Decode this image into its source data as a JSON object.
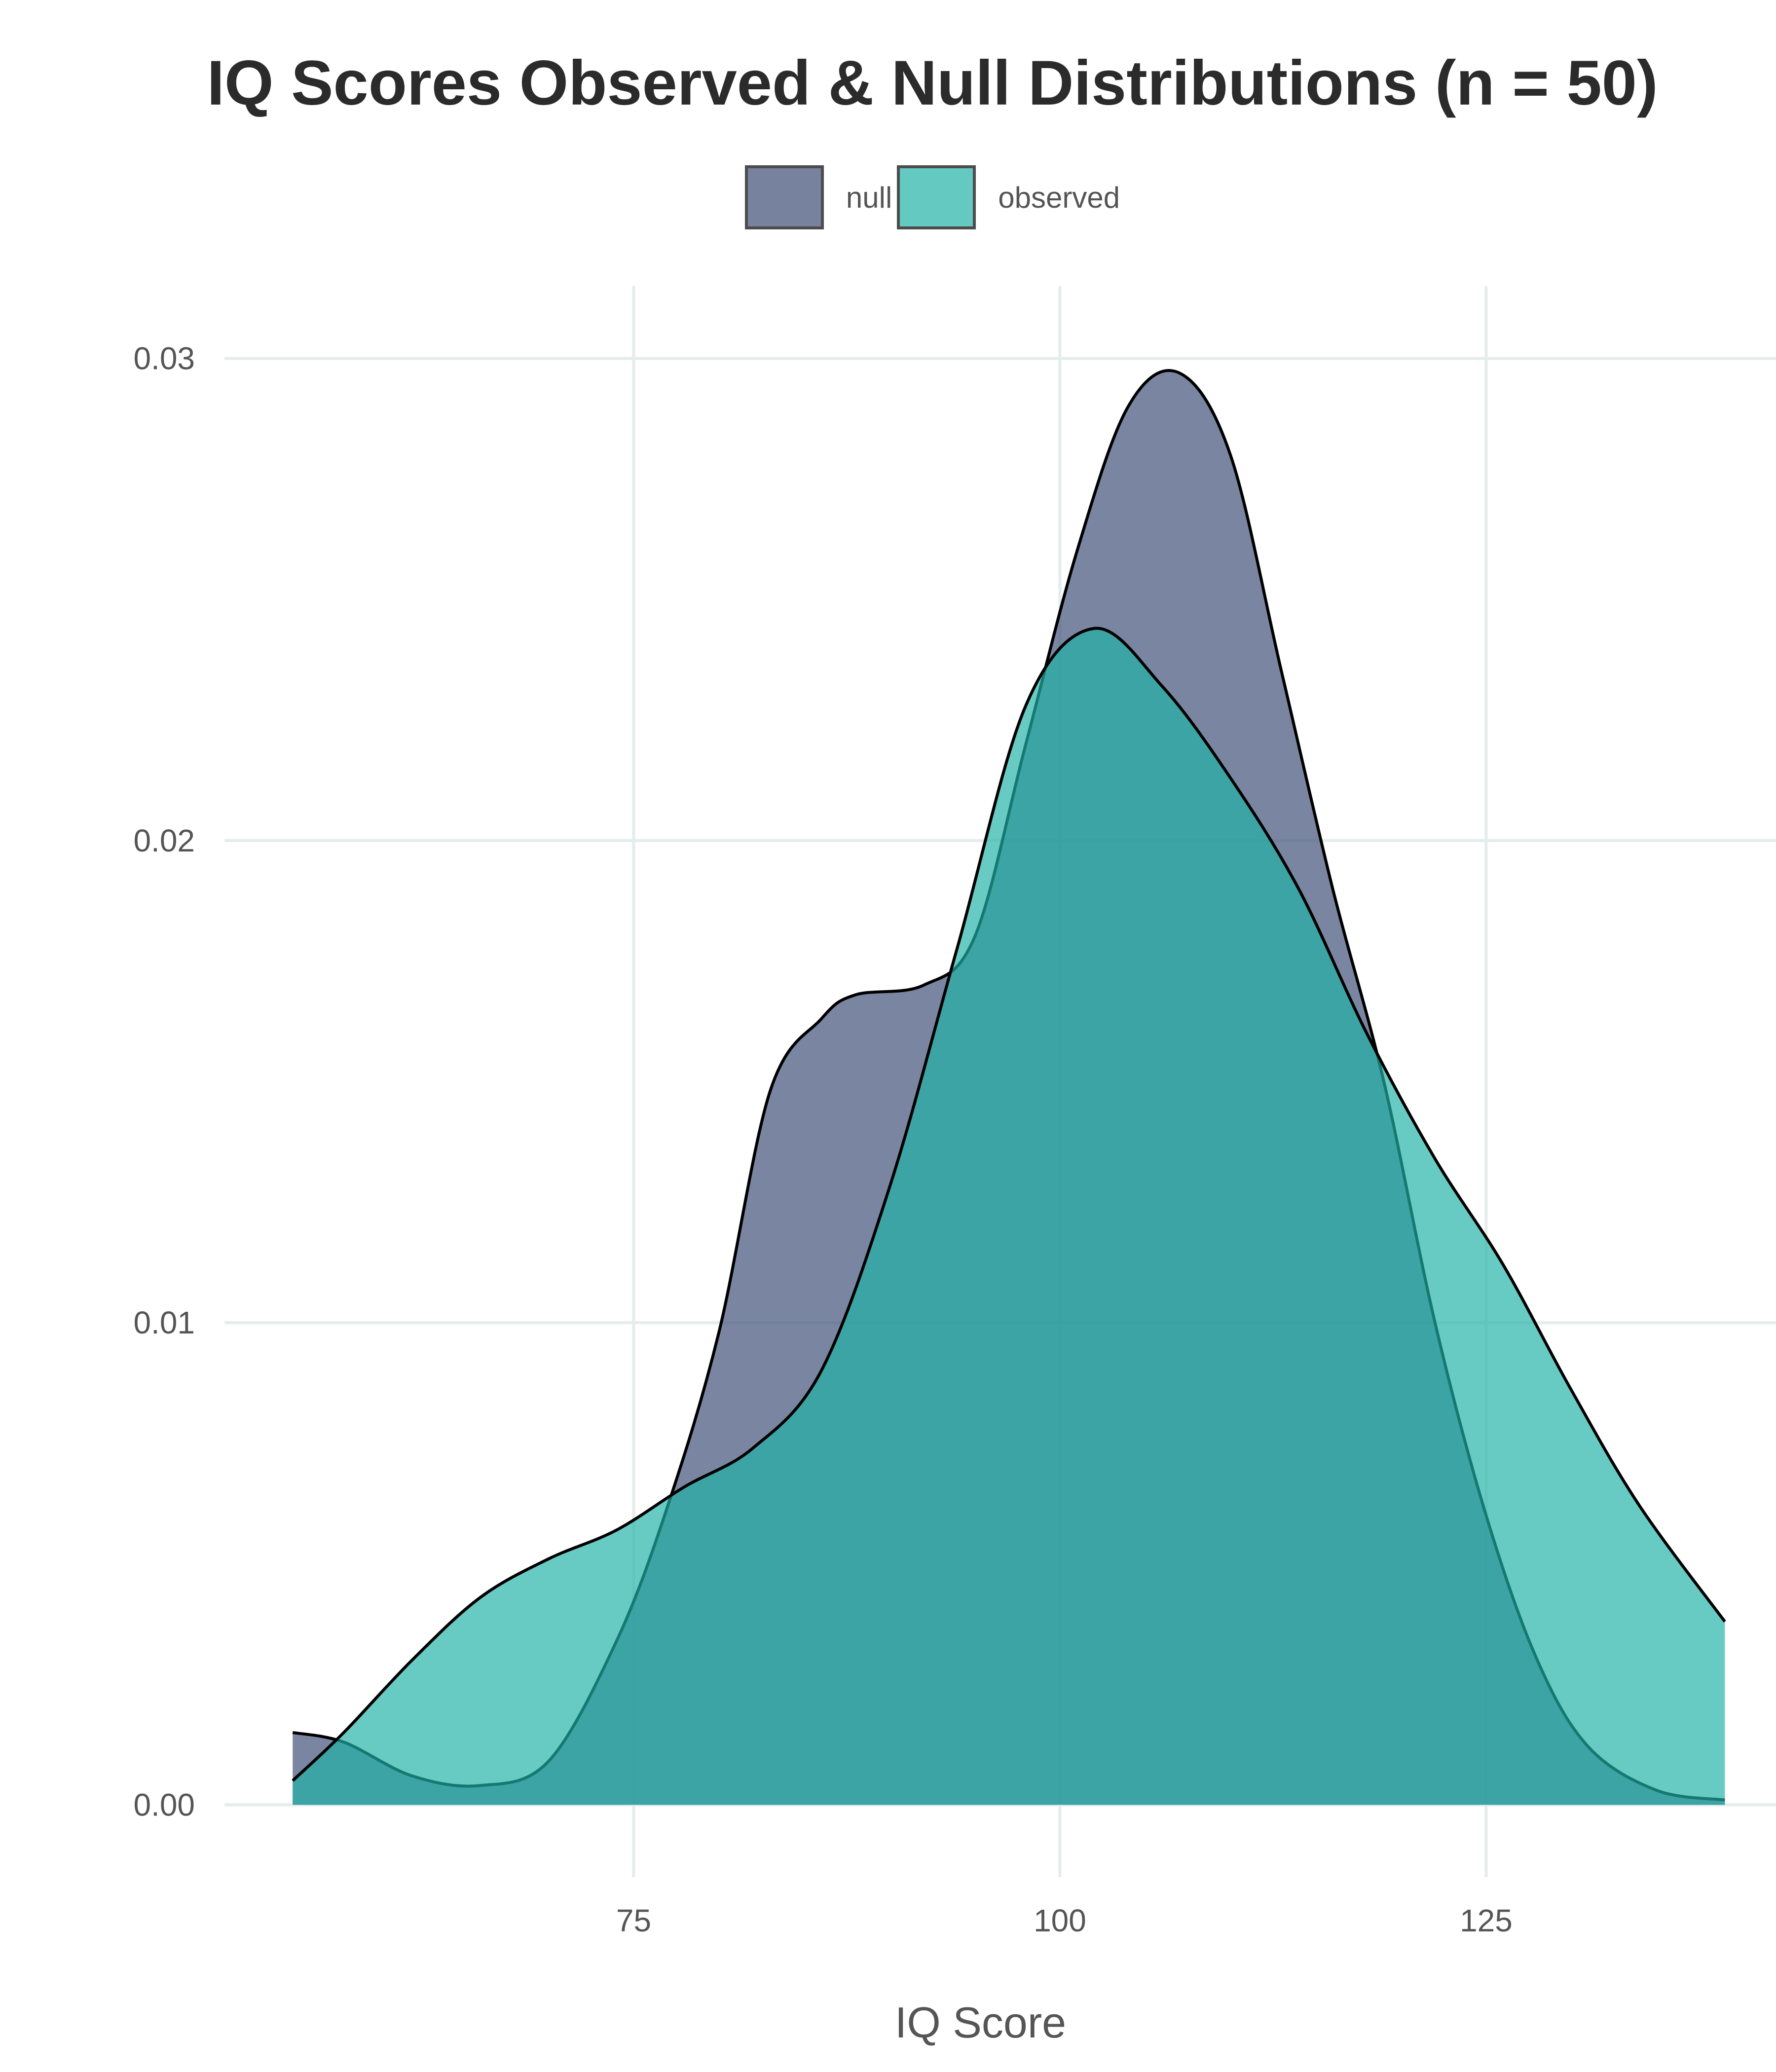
{
  "chart_data": {
    "type": "area",
    "title": "IQ Scores Observed & Null Distributions (n = 50)",
    "xlabel": "IQ Score",
    "ylabel": "",
    "xlim": [
      51,
      142
    ],
    "ylim": [
      -0.0015,
      0.0315
    ],
    "x_ticks": [
      75,
      100,
      125
    ],
    "y_ticks": [
      0.0,
      0.01,
      0.02,
      0.03
    ],
    "x_tick_labels": [
      "75",
      "100",
      "125"
    ],
    "y_tick_labels": [
      "0.00",
      "0.01",
      "0.02",
      "0.03"
    ],
    "grid": true,
    "legend_position": "top",
    "series": [
      {
        "name": "null",
        "color": "#3B4D74",
        "x": [
          55,
          58,
          62,
          66,
          70,
          74,
          77,
          80,
          83,
          86,
          88,
          92,
          95,
          98,
          101,
          104,
          107,
          110,
          113,
          116,
          119,
          122,
          125,
          128,
          131,
          135,
          139
        ],
        "y": [
          0.0015,
          0.0013,
          0.0006,
          0.0004,
          0.0009,
          0.0034,
          0.0062,
          0.0098,
          0.0148,
          0.0163,
          0.0168,
          0.017,
          0.018,
          0.022,
          0.026,
          0.029,
          0.0297,
          0.028,
          0.0235,
          0.019,
          0.015,
          0.01,
          0.006,
          0.003,
          0.0012,
          0.0003,
          0.0001
        ]
      },
      {
        "name": "observed",
        "color": "#20B2A6",
        "x": [
          55,
          58,
          62,
          66,
          70,
          74,
          78,
          82,
          86,
          90,
          94,
          98,
          102,
          106,
          110,
          114,
          118,
          122,
          126,
          130,
          134,
          139
        ],
        "y": [
          0.0005,
          0.0015,
          0.003,
          0.0043,
          0.0051,
          0.0057,
          0.0066,
          0.0074,
          0.009,
          0.0128,
          0.0178,
          0.0228,
          0.0244,
          0.0232,
          0.0213,
          0.019,
          0.016,
          0.0134,
          0.0112,
          0.0086,
          0.0062,
          0.0038
        ]
      }
    ]
  }
}
